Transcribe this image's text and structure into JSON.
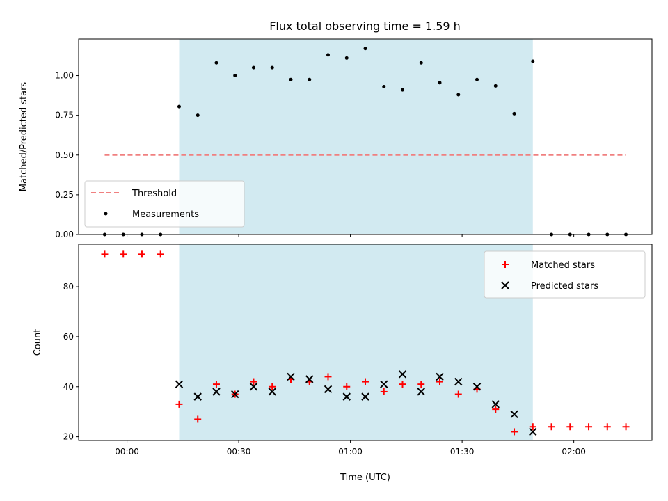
{
  "chart_data": [
    {
      "type": "scatter",
      "title": "Flux total observing time = 1.59 h",
      "xlabel": "",
      "ylabel": "Matched/Predicted stars",
      "xlim_minutes": [
        -13,
        141
      ],
      "ylim": [
        0,
        1.23
      ],
      "yticks": [
        {
          "value": 0.0,
          "label": "0.00"
        },
        {
          "value": 0.25,
          "label": "0.25"
        },
        {
          "value": 0.5,
          "label": "0.50"
        },
        {
          "value": 0.75,
          "label": "0.75"
        },
        {
          "value": 1.0,
          "label": "1.00"
        }
      ],
      "shaded_span": {
        "from_time": "00:14",
        "to_time": "01:49",
        "color": "#add8e6"
      },
      "legend": {
        "placement": "lower-left",
        "entries": [
          "Threshold",
          "Measurements"
        ]
      },
      "series": [
        {
          "name": "Threshold",
          "kind": "dashed-line",
          "color": "#f08080",
          "x_times": [
            "23:54",
            "02:14"
          ],
          "values": [
            0.5,
            0.5
          ]
        },
        {
          "name": "Measurements",
          "kind": "dots",
          "color": "#000000",
          "x_times": [
            "23:54",
            "23:59",
            "00:04",
            "00:09",
            "00:14",
            "00:19",
            "00:24",
            "00:29",
            "00:34",
            "00:39",
            "00:44",
            "00:49",
            "00:54",
            "00:59",
            "01:04",
            "01:09",
            "01:14",
            "01:19",
            "01:24",
            "01:29",
            "01:34",
            "01:39",
            "01:44",
            "01:49",
            "01:54",
            "01:59",
            "02:04",
            "02:09",
            "02:14"
          ],
          "values": [
            0,
            0,
            0,
            0,
            0.805,
            0.75,
            1.08,
            1.0,
            1.05,
            1.05,
            0.975,
            0.975,
            1.13,
            1.11,
            1.17,
            0.93,
            0.91,
            1.08,
            0.955,
            0.88,
            0.975,
            0.935,
            0.76,
            1.09,
            0,
            0,
            0,
            0,
            0
          ]
        }
      ]
    },
    {
      "type": "scatter",
      "title": "",
      "xlabel": "Time (UTC)",
      "ylabel": "Count",
      "xlim_minutes": [
        -13,
        141
      ],
      "ylim": [
        18.5,
        97
      ],
      "yticks": [
        {
          "value": 20,
          "label": "20"
        },
        {
          "value": 40,
          "label": "40"
        },
        {
          "value": 60,
          "label": "60"
        },
        {
          "value": 80,
          "label": "80"
        }
      ],
      "xticks": [
        {
          "time": "00:00",
          "label": "00:00"
        },
        {
          "time": "00:30",
          "label": "00:30"
        },
        {
          "time": "01:00",
          "label": "01:00"
        },
        {
          "time": "01:30",
          "label": "01:30"
        },
        {
          "time": "02:00",
          "label": "02:00"
        }
      ],
      "shaded_span": {
        "from_time": "00:14",
        "to_time": "01:49",
        "color": "#add8e6"
      },
      "legend": {
        "placement": "top-right",
        "entries": [
          "Matched stars",
          "Predicted stars"
        ]
      },
      "series": [
        {
          "name": "Matched stars",
          "marker": "plus",
          "color": "#ff0000",
          "x_times": [
            "23:54",
            "23:59",
            "00:04",
            "00:09",
            "00:14",
            "00:19",
            "00:24",
            "00:29",
            "00:34",
            "00:39",
            "00:44",
            "00:49",
            "00:54",
            "00:59",
            "01:04",
            "01:09",
            "01:14",
            "01:19",
            "01:24",
            "01:29",
            "01:34",
            "01:39",
            "01:44",
            "01:49",
            "01:54",
            "01:59",
            "02:04",
            "02:09",
            "02:14"
          ],
          "values": [
            93,
            93,
            93,
            93,
            33,
            27,
            41,
            37,
            42,
            40,
            43,
            42,
            44,
            40,
            42,
            38,
            41,
            41,
            42,
            37,
            39,
            31,
            22,
            24,
            24,
            24,
            24,
            24,
            24
          ]
        },
        {
          "name": "Predicted stars",
          "marker": "x",
          "color": "#000000",
          "x_times": [
            "00:14",
            "00:19",
            "00:24",
            "00:29",
            "00:34",
            "00:39",
            "00:44",
            "00:49",
            "00:54",
            "00:59",
            "01:04",
            "01:09",
            "01:14",
            "01:19",
            "01:24",
            "01:29",
            "01:34",
            "01:39",
            "01:44",
            "01:49"
          ],
          "values": [
            41,
            36,
            38,
            37,
            40,
            38,
            44,
            43,
            39,
            36,
            36,
            41,
            45,
            38,
            44,
            42,
            40,
            33,
            29,
            22
          ]
        }
      ]
    }
  ]
}
